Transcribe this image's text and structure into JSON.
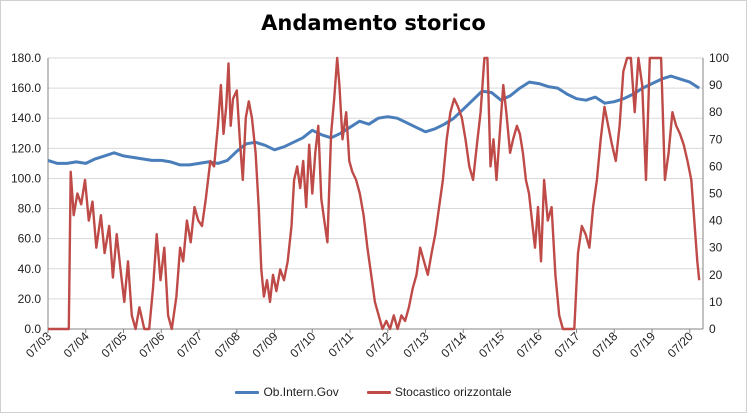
{
  "chart_data": {
    "type": "line",
    "title": "Andamento storico",
    "x": [
      "07/03",
      "07/04",
      "07/05",
      "07/06",
      "07/07",
      "07/08",
      "07/09",
      "07/10",
      "07/11",
      "07/12",
      "07/13",
      "07/14",
      "07/15",
      "07/16",
      "07/17",
      "07/18",
      "07/19",
      "07/20"
    ],
    "y_left": {
      "lim": [
        0,
        180
      ],
      "ticks": [
        "0.0",
        "20.0",
        "40.0",
        "60.0",
        "80.0",
        "100.0",
        "120.0",
        "140.0",
        "160.0",
        "180.0"
      ]
    },
    "y_right": {
      "lim": [
        0,
        100
      ],
      "ticks": [
        "0",
        "10",
        "20",
        "30",
        "40",
        "50",
        "60",
        "70",
        "80",
        "90",
        "100"
      ]
    },
    "grid": "horizontal",
    "legend": "bottom",
    "series": [
      {
        "name": "Ob.Intern.Gov",
        "axis": "left",
        "color": "#4a7ebb",
        "points": [
          [
            2003.5,
            112
          ],
          [
            2003.75,
            110
          ],
          [
            2004.0,
            110
          ],
          [
            2004.25,
            111
          ],
          [
            2004.5,
            110
          ],
          [
            2004.75,
            113
          ],
          [
            2005.0,
            115
          ],
          [
            2005.25,
            117
          ],
          [
            2005.5,
            115
          ],
          [
            2005.75,
            114
          ],
          [
            2006.0,
            113
          ],
          [
            2006.25,
            112
          ],
          [
            2006.5,
            112
          ],
          [
            2006.75,
            111
          ],
          [
            2007.0,
            109
          ],
          [
            2007.25,
            109
          ],
          [
            2007.5,
            110
          ],
          [
            2007.75,
            111
          ],
          [
            2008.0,
            110
          ],
          [
            2008.25,
            112
          ],
          [
            2008.5,
            118
          ],
          [
            2008.75,
            123
          ],
          [
            2009.0,
            124
          ],
          [
            2009.25,
            122
          ],
          [
            2009.5,
            119
          ],
          [
            2009.75,
            121
          ],
          [
            2010.0,
            124
          ],
          [
            2010.25,
            127
          ],
          [
            2010.5,
            132
          ],
          [
            2010.75,
            129
          ],
          [
            2011.0,
            127
          ],
          [
            2011.25,
            130
          ],
          [
            2011.5,
            134
          ],
          [
            2011.75,
            138
          ],
          [
            2012.0,
            136
          ],
          [
            2012.25,
            140
          ],
          [
            2012.5,
            141
          ],
          [
            2012.75,
            140
          ],
          [
            2013.0,
            137
          ],
          [
            2013.25,
            134
          ],
          [
            2013.5,
            131
          ],
          [
            2013.75,
            133
          ],
          [
            2014.0,
            136
          ],
          [
            2014.25,
            140
          ],
          [
            2014.5,
            146
          ],
          [
            2014.75,
            152
          ],
          [
            2015.0,
            158
          ],
          [
            2015.25,
            157
          ],
          [
            2015.5,
            152
          ],
          [
            2015.75,
            155
          ],
          [
            2016.0,
            160
          ],
          [
            2016.25,
            164
          ],
          [
            2016.5,
            163
          ],
          [
            2016.75,
            161
          ],
          [
            2017.0,
            160
          ],
          [
            2017.25,
            156
          ],
          [
            2017.5,
            153
          ],
          [
            2017.75,
            152
          ],
          [
            2018.0,
            154
          ],
          [
            2018.25,
            150
          ],
          [
            2018.5,
            151
          ],
          [
            2018.75,
            153
          ],
          [
            2019.0,
            156
          ],
          [
            2019.25,
            160
          ],
          [
            2019.5,
            163
          ],
          [
            2019.75,
            166
          ],
          [
            2020.0,
            168
          ],
          [
            2020.25,
            166
          ],
          [
            2020.5,
            164
          ],
          [
            2020.75,
            160
          ]
        ]
      },
      {
        "name": "Stocastico orizzontale",
        "axis": "right",
        "color": "#be4b48",
        "points": [
          [
            2003.5,
            0
          ],
          [
            2003.7,
            0
          ],
          [
            2003.9,
            0
          ],
          [
            2004.05,
            0
          ],
          [
            2004.1,
            58
          ],
          [
            2004.18,
            42
          ],
          [
            2004.28,
            50
          ],
          [
            2004.38,
            46
          ],
          [
            2004.48,
            55
          ],
          [
            2004.58,
            40
          ],
          [
            2004.68,
            47
          ],
          [
            2004.78,
            30
          ],
          [
            2004.9,
            42
          ],
          [
            2005.0,
            28
          ],
          [
            2005.12,
            38
          ],
          [
            2005.22,
            19
          ],
          [
            2005.32,
            35
          ],
          [
            2005.42,
            22
          ],
          [
            2005.52,
            10
          ],
          [
            2005.62,
            25
          ],
          [
            2005.72,
            5
          ],
          [
            2005.82,
            0
          ],
          [
            2005.92,
            8
          ],
          [
            2006.05,
            0
          ],
          [
            2006.18,
            0
          ],
          [
            2006.28,
            15
          ],
          [
            2006.38,
            35
          ],
          [
            2006.48,
            18
          ],
          [
            2006.58,
            30
          ],
          [
            2006.68,
            5
          ],
          [
            2006.78,
            0
          ],
          [
            2006.9,
            12
          ],
          [
            2007.0,
            30
          ],
          [
            2007.08,
            25
          ],
          [
            2007.18,
            40
          ],
          [
            2007.28,
            32
          ],
          [
            2007.38,
            45
          ],
          [
            2007.48,
            40
          ],
          [
            2007.58,
            38
          ],
          [
            2007.68,
            48
          ],
          [
            2007.8,
            62
          ],
          [
            2007.9,
            60
          ],
          [
            2008.0,
            75
          ],
          [
            2008.08,
            90
          ],
          [
            2008.15,
            72
          ],
          [
            2008.22,
            82
          ],
          [
            2008.28,
            98
          ],
          [
            2008.34,
            75
          ],
          [
            2008.4,
            85
          ],
          [
            2008.5,
            88
          ],
          [
            2008.58,
            70
          ],
          [
            2008.66,
            55
          ],
          [
            2008.74,
            78
          ],
          [
            2008.82,
            84
          ],
          [
            2008.9,
            78
          ],
          [
            2009.0,
            65
          ],
          [
            2009.08,
            45
          ],
          [
            2009.15,
            22
          ],
          [
            2009.22,
            12
          ],
          [
            2009.3,
            18
          ],
          [
            2009.38,
            10
          ],
          [
            2009.46,
            20
          ],
          [
            2009.55,
            14
          ],
          [
            2009.65,
            22
          ],
          [
            2009.75,
            18
          ],
          [
            2009.85,
            25
          ],
          [
            2009.95,
            38
          ],
          [
            2010.02,
            55
          ],
          [
            2010.1,
            60
          ],
          [
            2010.18,
            52
          ],
          [
            2010.26,
            62
          ],
          [
            2010.34,
            45
          ],
          [
            2010.42,
            68
          ],
          [
            2010.5,
            50
          ],
          [
            2010.58,
            65
          ],
          [
            2010.66,
            75
          ],
          [
            2010.74,
            48
          ],
          [
            2010.82,
            40
          ],
          [
            2010.9,
            32
          ],
          [
            2011.0,
            72
          ],
          [
            2011.08,
            85
          ],
          [
            2011.16,
            100
          ],
          [
            2011.22,
            90
          ],
          [
            2011.3,
            70
          ],
          [
            2011.4,
            80
          ],
          [
            2011.48,
            62
          ],
          [
            2011.56,
            58
          ],
          [
            2011.66,
            55
          ],
          [
            2011.76,
            50
          ],
          [
            2011.86,
            42
          ],
          [
            2011.96,
            30
          ],
          [
            2012.06,
            20
          ],
          [
            2012.16,
            10
          ],
          [
            2012.26,
            5
          ],
          [
            2012.36,
            0
          ],
          [
            2012.46,
            3
          ],
          [
            2012.56,
            0
          ],
          [
            2012.66,
            5
          ],
          [
            2012.76,
            0
          ],
          [
            2012.86,
            5
          ],
          [
            2012.96,
            3
          ],
          [
            2013.06,
            8
          ],
          [
            2013.16,
            15
          ],
          [
            2013.26,
            20
          ],
          [
            2013.36,
            30
          ],
          [
            2013.46,
            25
          ],
          [
            2013.56,
            20
          ],
          [
            2013.66,
            28
          ],
          [
            2013.76,
            35
          ],
          [
            2013.86,
            45
          ],
          [
            2013.96,
            55
          ],
          [
            2014.06,
            70
          ],
          [
            2014.16,
            80
          ],
          [
            2014.26,
            85
          ],
          [
            2014.36,
            82
          ],
          [
            2014.46,
            78
          ],
          [
            2014.56,
            70
          ],
          [
            2014.66,
            60
          ],
          [
            2014.76,
            55
          ],
          [
            2014.86,
            68
          ],
          [
            2014.96,
            80
          ],
          [
            2015.06,
            100
          ],
          [
            2015.14,
            100
          ],
          [
            2015.22,
            60
          ],
          [
            2015.3,
            70
          ],
          [
            2015.38,
            55
          ],
          [
            2015.48,
            75
          ],
          [
            2015.56,
            90
          ],
          [
            2015.64,
            80
          ],
          [
            2015.74,
            65
          ],
          [
            2015.82,
            70
          ],
          [
            2015.92,
            75
          ],
          [
            2016.0,
            72
          ],
          [
            2016.08,
            65
          ],
          [
            2016.16,
            55
          ],
          [
            2016.24,
            50
          ],
          [
            2016.32,
            40
          ],
          [
            2016.4,
            30
          ],
          [
            2016.48,
            45
          ],
          [
            2016.56,
            25
          ],
          [
            2016.64,
            55
          ],
          [
            2016.74,
            40
          ],
          [
            2016.84,
            45
          ],
          [
            2016.94,
            20
          ],
          [
            2017.04,
            5
          ],
          [
            2017.14,
            0
          ],
          [
            2017.24,
            0
          ],
          [
            2017.34,
            0
          ],
          [
            2017.44,
            0
          ],
          [
            2017.54,
            28
          ],
          [
            2017.64,
            38
          ],
          [
            2017.74,
            35
          ],
          [
            2017.84,
            30
          ],
          [
            2017.94,
            45
          ],
          [
            2018.04,
            55
          ],
          [
            2018.14,
            70
          ],
          [
            2018.24,
            82
          ],
          [
            2018.34,
            75
          ],
          [
            2018.44,
            68
          ],
          [
            2018.54,
            62
          ],
          [
            2018.64,
            75
          ],
          [
            2018.74,
            95
          ],
          [
            2018.84,
            100
          ],
          [
            2018.94,
            100
          ],
          [
            2019.04,
            80
          ],
          [
            2019.14,
            100
          ],
          [
            2019.24,
            90
          ],
          [
            2019.34,
            55
          ],
          [
            2019.44,
            100
          ],
          [
            2019.54,
            100
          ],
          [
            2019.64,
            100
          ],
          [
            2019.74,
            100
          ],
          [
            2019.84,
            55
          ],
          [
            2019.94,
            65
          ],
          [
            2020.04,
            80
          ],
          [
            2020.14,
            75
          ],
          [
            2020.24,
            72
          ],
          [
            2020.34,
            68
          ],
          [
            2020.44,
            62
          ],
          [
            2020.54,
            55
          ],
          [
            2020.62,
            40
          ],
          [
            2020.7,
            25
          ],
          [
            2020.75,
            18
          ]
        ]
      }
    ]
  }
}
